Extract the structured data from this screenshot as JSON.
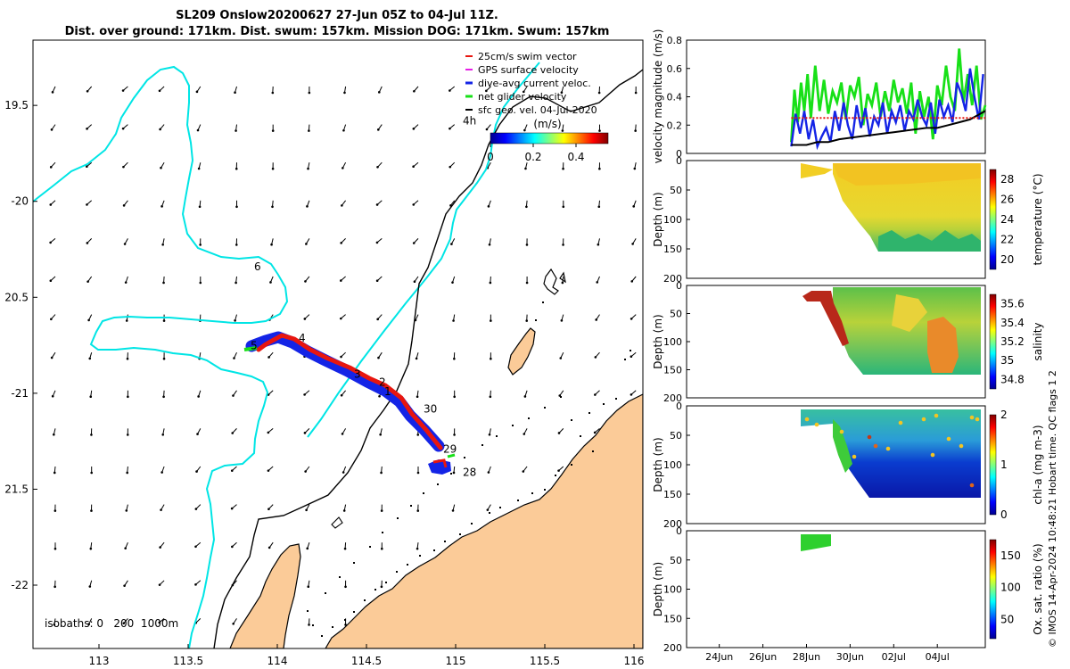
{
  "colors": {
    "land": "#fbcb98",
    "coast": "#000000",
    "iso200": "#00e5e5",
    "track_red": "#e8160f",
    "track_blue": "#1424e6",
    "net": "#18e018",
    "sfc": "#000000",
    "gps": "#e61ee6",
    "arrow": "#000000"
  },
  "chart_data": [
    {
      "type": "map",
      "title": "SL209 Onslow20200627 27-Jun 05Z to 04-Jul 11Z.",
      "subtitle": "Dist. over ground: 171km. Dist. swum: 157km. Mission DOG: 171km. Swum: 157km",
      "xlim": [
        112.63,
        116.05
      ],
      "ylim": [
        -22.33,
        -19.16
      ],
      "xticks": [
        113,
        113.5,
        114,
        114.5,
        115,
        115.5,
        116
      ],
      "xtick_labels": [
        "113",
        "113.5",
        "114",
        "114.5",
        "115",
        "115.5",
        "116"
      ],
      "yticks": [
        -19.5,
        -20,
        -20.5,
        -21,
        -21.5,
        -22
      ],
      "ytick_labels": [
        "19.5",
        "-20",
        "20.5",
        "-21",
        "21.5",
        "-22"
      ],
      "legend": [
        "25cm/s swim vector",
        "GPS surface velocity",
        "dive-avg current veloc.",
        "net glider velocity",
        "sfc geo. vel. 04-Jul-2020"
      ],
      "colorbar": {
        "label": "(m/s)",
        "ticks": [
          0,
          0.2,
          0.4
        ],
        "tick_labels": [
          "0",
          "0.2",
          "0.4"
        ],
        "range": [
          0,
          0.55
        ]
      },
      "isobaths_label": "isobaths: 0   200  1000m",
      "day_labels": [
        {
          "text": "4h",
          "lon": 115.04,
          "lat": -19.6
        },
        {
          "text": "6",
          "lon": 113.87,
          "lat": -20.36
        },
        {
          "text": "5",
          "lon": 113.85,
          "lat": -20.77
        },
        {
          "text": "4",
          "lon": 114.12,
          "lat": -20.73
        },
        {
          "text": "3",
          "lon": 114.43,
          "lat": -20.92
        },
        {
          "text": "2",
          "lon": 114.57,
          "lat": -20.96
        },
        {
          "text": "1",
          "lon": 114.6,
          "lat": -21.01
        },
        {
          "text": "30",
          "lon": 114.82,
          "lat": -21.1
        },
        {
          "text": "29",
          "lon": 114.93,
          "lat": -21.31
        },
        {
          "text": "28",
          "lon": 115.04,
          "lat": -21.43
        }
      ],
      "track": [
        [
          113.8,
          -20.81
        ],
        [
          113.9,
          -20.78
        ],
        [
          113.97,
          -20.72
        ],
        [
          114.05,
          -20.73
        ],
        [
          114.12,
          -20.75
        ],
        [
          114.25,
          -20.8
        ],
        [
          114.38,
          -20.86
        ],
        [
          114.5,
          -20.92
        ],
        [
          114.62,
          -20.98
        ],
        [
          114.72,
          -21.04
        ],
        [
          114.78,
          -21.1
        ],
        [
          114.84,
          -21.18
        ],
        [
          114.9,
          -21.27
        ],
        [
          114.96,
          -21.33
        ],
        [
          114.99,
          -21.37
        ]
      ],
      "current_field_speed_ms": 0.12
    },
    {
      "type": "line",
      "panel": "velocity",
      "ylabel": "velocity magnitude (m/s)",
      "ylim": [
        0,
        0.8
      ],
      "yticks": [
        0,
        0.2,
        0.4,
        0.6,
        0.8
      ],
      "ytick_labels": [
        "0",
        "0.2",
        "0.4",
        "0.6",
        "0.8"
      ],
      "xlim": [
        22.5,
        36.2
      ],
      "series": [
        {
          "name": "net glider velocity",
          "color": "#18e018",
          "x": [
            27.3,
            27.45,
            27.6,
            27.75,
            27.9,
            28.05,
            28.2,
            28.4,
            28.6,
            28.8,
            29.0,
            29.2,
            29.4,
            29.6,
            29.8,
            30.0,
            30.2,
            30.4,
            30.6,
            30.8,
            31.0,
            31.2,
            31.4,
            31.6,
            31.8,
            32.0,
            32.2,
            32.4,
            32.6,
            32.8,
            33.0,
            33.2,
            33.4,
            33.6,
            33.8,
            34.0,
            34.2,
            34.4,
            34.6,
            34.8,
            35.0,
            35.2,
            35.4,
            35.6,
            35.8,
            36.0,
            36.2
          ],
          "y": [
            0.08,
            0.45,
            0.22,
            0.5,
            0.3,
            0.56,
            0.25,
            0.62,
            0.3,
            0.52,
            0.28,
            0.44,
            0.36,
            0.5,
            0.24,
            0.48,
            0.4,
            0.54,
            0.2,
            0.42,
            0.34,
            0.5,
            0.26,
            0.44,
            0.3,
            0.52,
            0.36,
            0.46,
            0.28,
            0.5,
            0.14,
            0.44,
            0.26,
            0.4,
            0.1,
            0.48,
            0.34,
            0.62,
            0.4,
            0.3,
            0.74,
            0.36,
            0.56,
            0.34,
            0.62,
            0.24,
            0.34
          ]
        },
        {
          "name": "dive-avg current veloc.",
          "color": "#1424e6",
          "x": [
            27.3,
            27.5,
            27.7,
            27.9,
            28.1,
            28.3,
            28.5,
            28.7,
            28.9,
            29.1,
            29.3,
            29.5,
            29.7,
            29.9,
            30.1,
            30.3,
            30.5,
            30.7,
            30.9,
            31.1,
            31.3,
            31.5,
            31.7,
            31.9,
            32.1,
            32.3,
            32.5,
            32.7,
            32.9,
            33.1,
            33.3,
            33.5,
            33.7,
            33.9,
            34.1,
            34.3,
            34.5,
            34.7,
            34.9,
            35.1,
            35.3,
            35.5,
            35.7,
            35.9,
            36.1
          ],
          "y": [
            0.05,
            0.28,
            0.14,
            0.3,
            0.1,
            0.24,
            0.05,
            0.12,
            0.18,
            0.08,
            0.3,
            0.16,
            0.36,
            0.2,
            0.1,
            0.34,
            0.18,
            0.32,
            0.12,
            0.26,
            0.2,
            0.36,
            0.14,
            0.3,
            0.22,
            0.34,
            0.16,
            0.3,
            0.24,
            0.38,
            0.26,
            0.2,
            0.36,
            0.14,
            0.38,
            0.26,
            0.34,
            0.22,
            0.5,
            0.42,
            0.3,
            0.6,
            0.4,
            0.24,
            0.56
          ]
        },
        {
          "name": "sfc geo. vel.",
          "color": "#000000",
          "x": [
            27.3,
            28.0,
            28.5,
            29.0,
            29.5,
            30.0,
            30.5,
            31.0,
            31.5,
            32.0,
            32.5,
            33.0,
            33.5,
            34.0,
            34.5,
            35.0,
            35.5,
            36.2
          ],
          "y": [
            0.06,
            0.06,
            0.08,
            0.08,
            0.1,
            0.11,
            0.12,
            0.13,
            0.14,
            0.15,
            0.16,
            0.17,
            0.18,
            0.18,
            0.2,
            0.22,
            0.24,
            0.3
          ]
        },
        {
          "name": "25cm/s swim vector",
          "color": "#e8160f",
          "x": [
            27.3,
            36.2
          ],
          "y": [
            0.25,
            0.25
          ]
        }
      ]
    },
    {
      "type": "heatmap",
      "panel": "temperature",
      "ylabel": "Depth (m)",
      "ylim": [
        200,
        0
      ],
      "yticks": [
        0,
        50,
        100,
        150,
        200
      ],
      "colorbar_label": "temperature (°C)",
      "colorbar_range": [
        19,
        29
      ],
      "colorbar_ticks": [
        20,
        22,
        24,
        26,
        28
      ]
    },
    {
      "type": "heatmap",
      "panel": "salinity",
      "ylabel": "Depth (m)",
      "ylim": [
        200,
        0
      ],
      "yticks": [
        0,
        50,
        100,
        150,
        200
      ],
      "colorbar_label": "salinity",
      "colorbar_range": [
        34.7,
        35.7
      ],
      "colorbar_ticks": [
        34.8,
        35,
        35.2,
        35.4,
        35.6
      ],
      "colorbar_tick_labels": [
        "34.8",
        "35",
        "35.2",
        "35.4",
        "35.6"
      ]
    },
    {
      "type": "heatmap",
      "panel": "chl-a",
      "ylabel": "Depth (m)",
      "ylim": [
        200,
        0
      ],
      "yticks": [
        0,
        50,
        100,
        150,
        200
      ],
      "colorbar_label": "chl-a (mg m-3)",
      "colorbar_range": [
        0,
        2
      ],
      "colorbar_ticks": [
        0,
        1,
        2
      ]
    },
    {
      "type": "heatmap",
      "panel": "oxygen",
      "ylabel": "Depth (m)",
      "ylim": [
        200,
        0
      ],
      "yticks": [
        0,
        50,
        100,
        150,
        200
      ],
      "colorbar_label": "Ox. sat. ratio (%)",
      "colorbar_range": [
        20,
        175
      ],
      "colorbar_ticks": [
        50,
        100,
        150
      ],
      "xticks": [
        24,
        26,
        28,
        30,
        32,
        34
      ],
      "xtick_labels": [
        "24Jun",
        "26Jun",
        "28Jun",
        "30Jun",
        "02Jul",
        "04Jul"
      ]
    }
  ],
  "side_text": "© IMOS 14-Apr-2024 10:48:21 Hobart time. QC flags 1  2"
}
